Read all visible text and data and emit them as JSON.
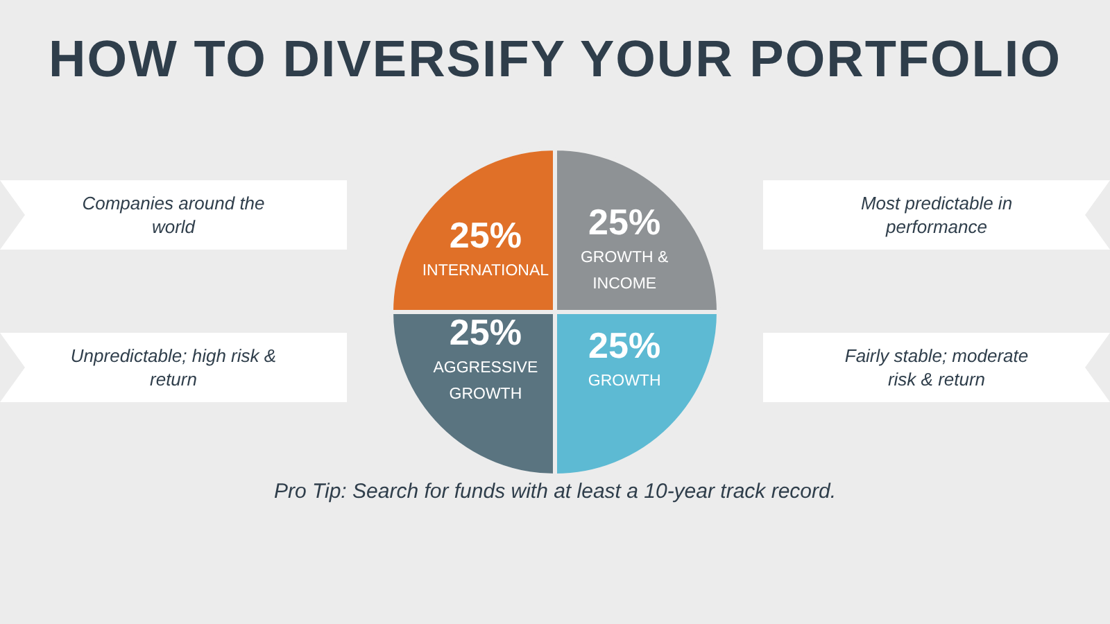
{
  "chart_data": {
    "type": "pie",
    "title": "HOW TO DIVERSIFY YOUR PORTFOLIO",
    "categories": [
      "GROWTH & INCOME",
      "GROWTH",
      "AGGRESSIVE GROWTH",
      "INTERNATIONAL"
    ],
    "values": [
      25,
      25,
      25,
      25
    ],
    "value_labels": [
      "25%",
      "25%",
      "25%",
      "25%"
    ],
    "colors": [
      "#8e9295",
      "#5dbad3",
      "#5a7480",
      "#e07028"
    ],
    "annotations": [
      "Companies around the world",
      "Most predictable in performance",
      "Unpredictable; high risk & return",
      "Fairly stable; moderate risk & return",
      "Pro Tip: Search for funds with at least a 10-year track record."
    ],
    "legend": false
  }
}
